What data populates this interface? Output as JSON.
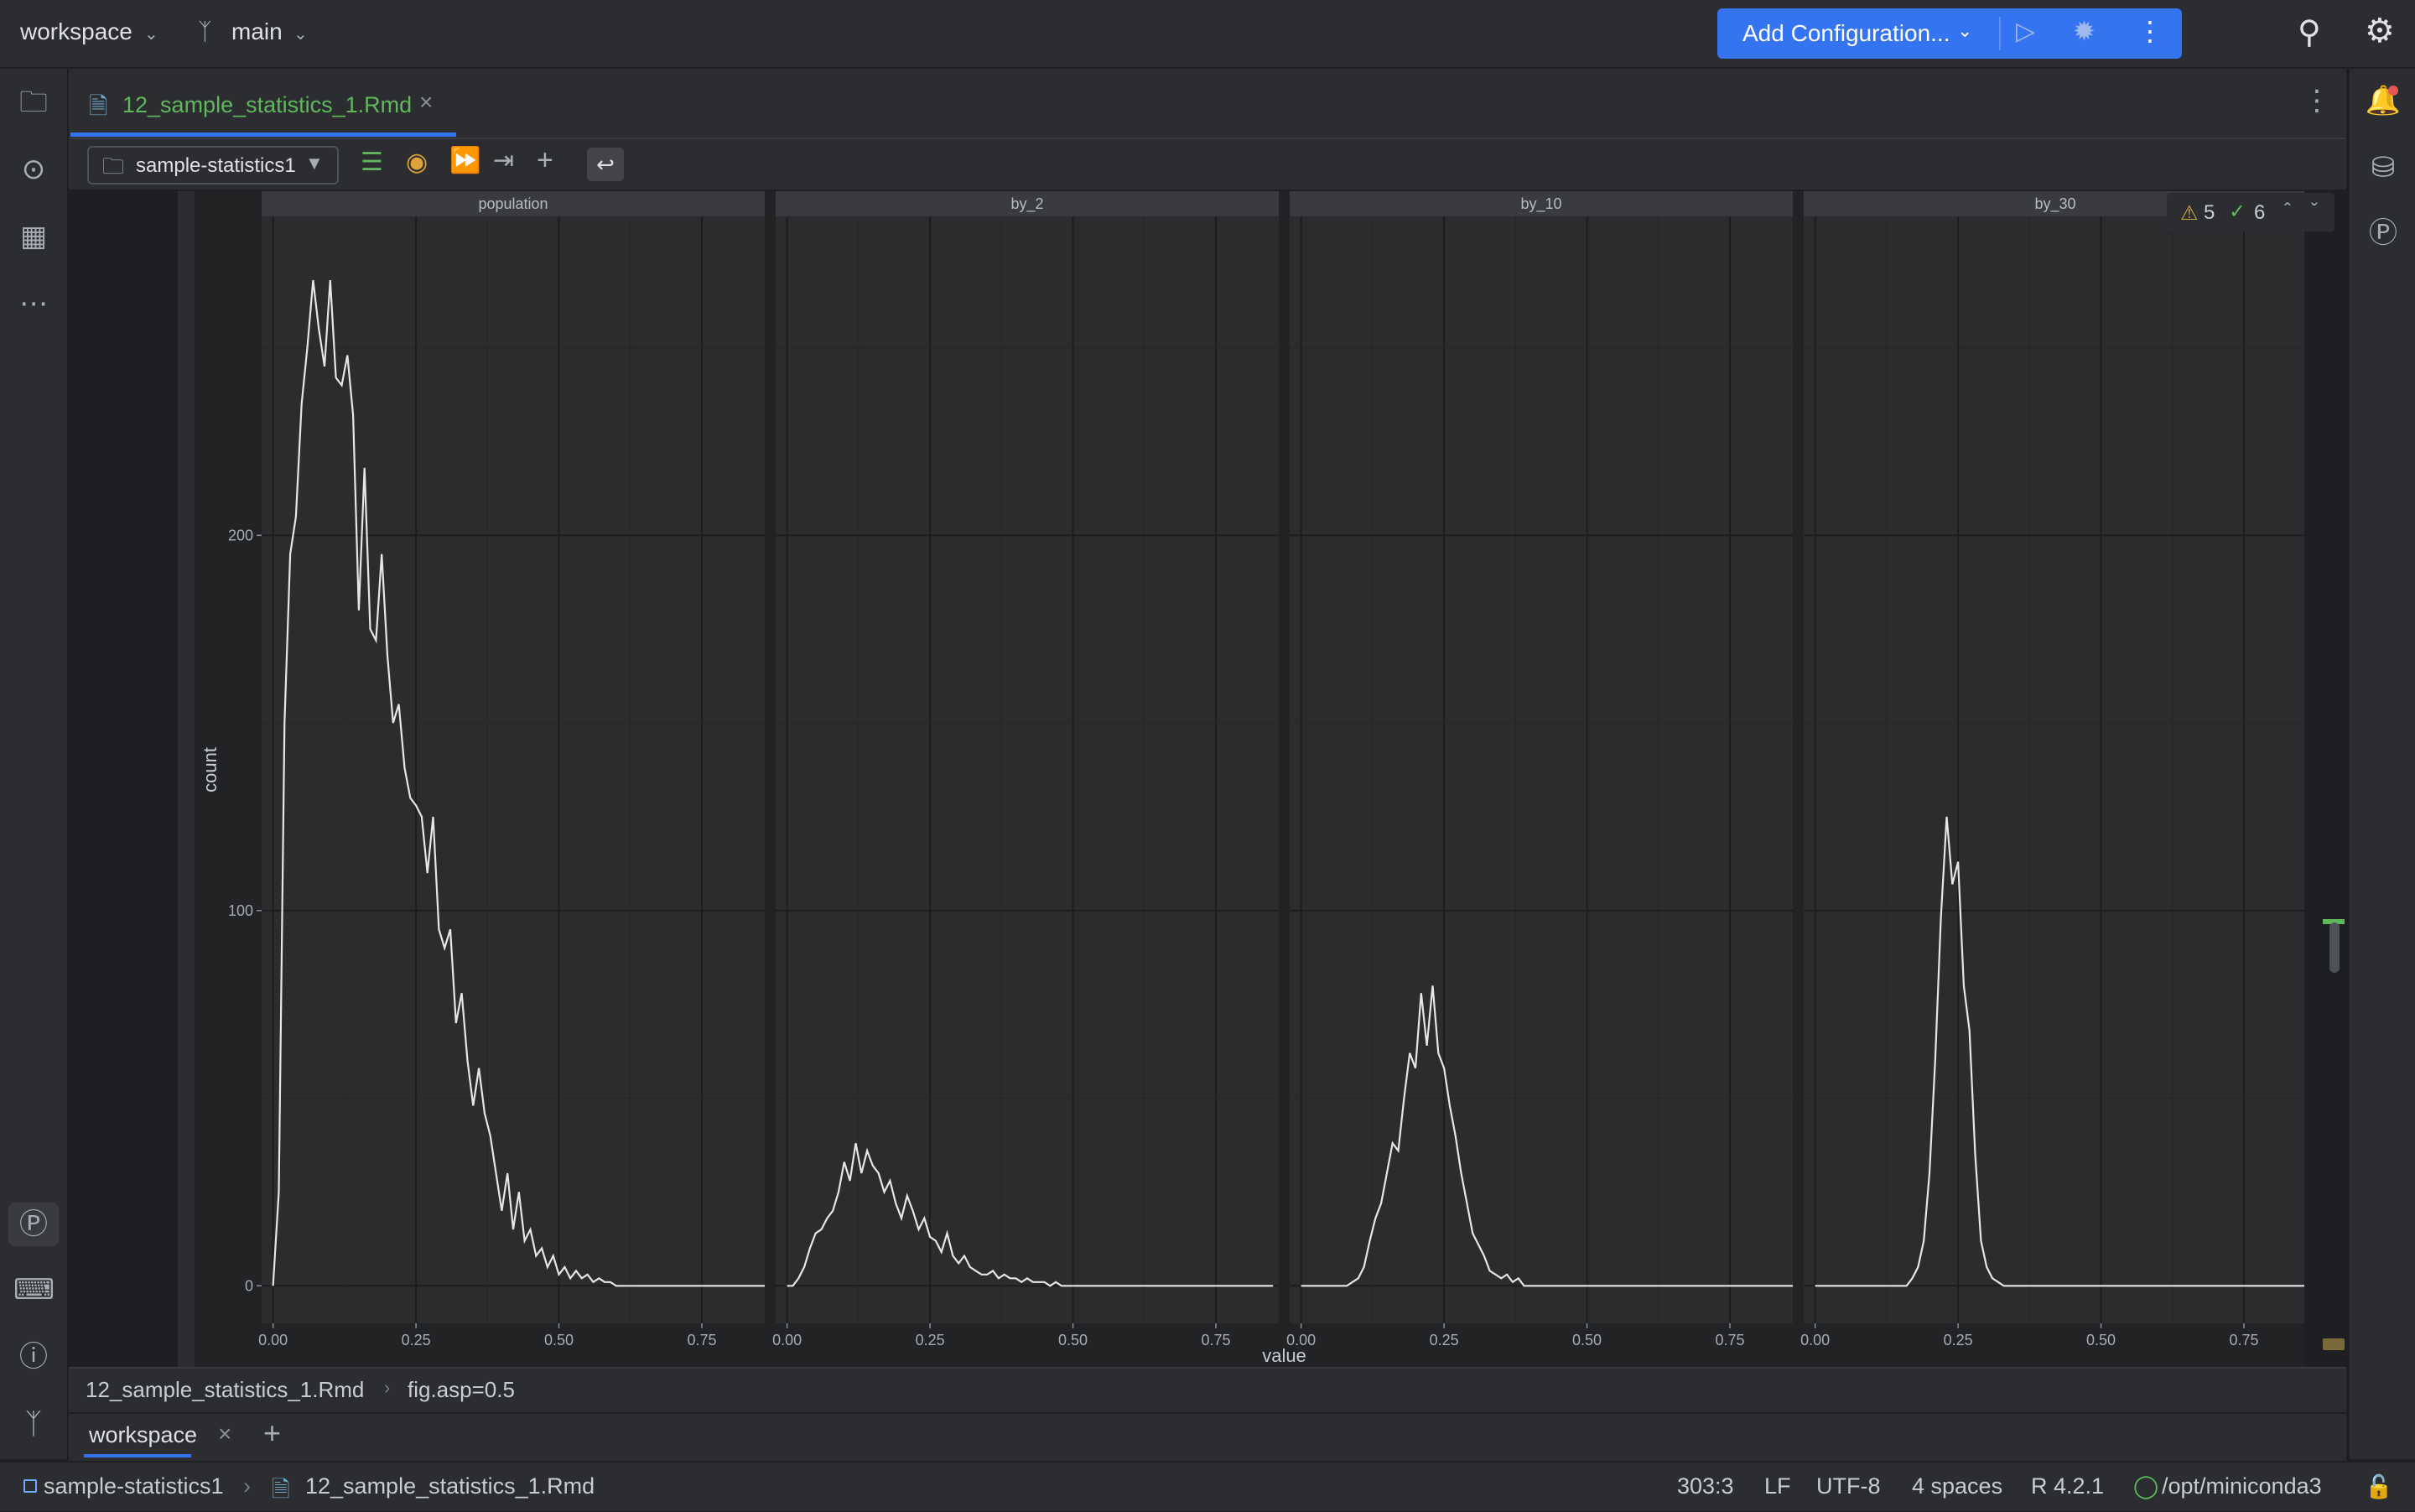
{
  "topbar": {
    "project": "workspace",
    "branch": "main",
    "run_config": "Add Configuration..."
  },
  "editor": {
    "tab_label": "12_sample_statistics_1.Rmd",
    "selector": "sample-statistics1"
  },
  "problems": {
    "warnings": "5",
    "ok": "6"
  },
  "breadcrumb": {
    "file": "12_sample_statistics_1.Rmd",
    "chunk": "fig.asp=0.5"
  },
  "bottom": {
    "tab": "workspace"
  },
  "status": {
    "module": "sample-statistics1",
    "file": "12_sample_statistics_1.Rmd",
    "position": "303:3",
    "line_sep": "LF",
    "encoding": "UTF-8",
    "indent": "4 spaces",
    "r_version": "R 4.2.1",
    "interpreter": "/opt/miniconda3"
  },
  "chart_data": {
    "type": "line",
    "xlabel": "value",
    "ylabel": "count",
    "xlim": [
      -0.02,
      0.86
    ],
    "ylim": [
      -10,
      285
    ],
    "x_ticks": [
      "0.00",
      "0.25",
      "0.50",
      "0.75"
    ],
    "x_tick_values": [
      0,
      0.25,
      0.5,
      0.75
    ],
    "y_ticks": [
      "0",
      "100",
      "200"
    ],
    "y_tick_values": [
      0,
      100,
      200
    ],
    "grid": true,
    "facets": [
      {
        "name": "population",
        "x": [
          0.0,
          0.01,
          0.02,
          0.03,
          0.04,
          0.05,
          0.06,
          0.07,
          0.08,
          0.09,
          0.1,
          0.11,
          0.12,
          0.13,
          0.14,
          0.15,
          0.16,
          0.17,
          0.18,
          0.19,
          0.2,
          0.21,
          0.22,
          0.23,
          0.24,
          0.25,
          0.26,
          0.27,
          0.28,
          0.29,
          0.3,
          0.31,
          0.32,
          0.33,
          0.34,
          0.35,
          0.36,
          0.37,
          0.38,
          0.39,
          0.4,
          0.41,
          0.42,
          0.43,
          0.44,
          0.45,
          0.46,
          0.47,
          0.48,
          0.49,
          0.5,
          0.51,
          0.52,
          0.53,
          0.54,
          0.55,
          0.56,
          0.57,
          0.58,
          0.59,
          0.6,
          0.61,
          0.62,
          0.63,
          0.64,
          0.65,
          0.66,
          0.67,
          0.68,
          0.69,
          0.7,
          0.71,
          0.72,
          0.73,
          0.74,
          0.75,
          0.76,
          0.77,
          0.78,
          0.79,
          0.8,
          0.81,
          0.82,
          0.83,
          0.84,
          0.85,
          0.86
        ],
        "y": [
          0,
          25,
          150,
          195,
          205,
          235,
          250,
          268,
          255,
          245,
          268,
          242,
          240,
          248,
          232,
          180,
          218,
          175,
          172,
          195,
          168,
          150,
          155,
          138,
          130,
          128,
          125,
          110,
          125,
          95,
          90,
          95,
          70,
          78,
          60,
          48,
          58,
          46,
          40,
          30,
          20,
          30,
          15,
          25,
          12,
          15,
          8,
          10,
          5,
          8,
          3,
          5,
          2,
          4,
          2,
          3,
          1,
          2,
          1,
          1,
          0,
          0,
          0,
          0,
          0,
          0,
          0,
          0,
          0,
          0,
          0,
          0,
          0,
          0,
          0,
          0,
          0,
          0,
          0,
          0,
          0,
          0,
          0,
          0,
          0,
          0,
          0
        ]
      },
      {
        "name": "by_2",
        "x": [
          0.0,
          0.01,
          0.02,
          0.03,
          0.04,
          0.05,
          0.06,
          0.07,
          0.08,
          0.09,
          0.1,
          0.11,
          0.12,
          0.13,
          0.14,
          0.15,
          0.16,
          0.17,
          0.18,
          0.19,
          0.2,
          0.21,
          0.22,
          0.23,
          0.24,
          0.25,
          0.26,
          0.27,
          0.28,
          0.29,
          0.3,
          0.31,
          0.32,
          0.33,
          0.34,
          0.35,
          0.36,
          0.37,
          0.38,
          0.39,
          0.4,
          0.41,
          0.42,
          0.43,
          0.44,
          0.45,
          0.46,
          0.47,
          0.48,
          0.49,
          0.5,
          0.51,
          0.52,
          0.53,
          0.54,
          0.55,
          0.56,
          0.57,
          0.58,
          0.59,
          0.6,
          0.61,
          0.62,
          0.63,
          0.64,
          0.65,
          0.66,
          0.67,
          0.68,
          0.69,
          0.7,
          0.71,
          0.72,
          0.73,
          0.74,
          0.75,
          0.8,
          0.85
        ],
        "y": [
          0,
          0,
          2,
          5,
          10,
          14,
          15,
          18,
          20,
          25,
          33,
          28,
          38,
          30,
          36,
          32,
          30,
          25,
          28,
          22,
          18,
          24,
          20,
          15,
          18,
          13,
          12,
          9,
          14,
          8,
          6,
          8,
          5,
          4,
          3,
          3,
          4,
          2,
          3,
          2,
          2,
          1,
          2,
          1,
          1,
          1,
          0,
          1,
          0,
          0,
          0,
          0,
          0,
          0,
          0,
          0,
          0,
          0,
          0,
          0,
          0,
          0,
          0,
          0,
          0,
          0,
          0,
          0,
          0,
          0,
          0,
          0,
          0,
          0,
          0,
          0,
          0,
          0
        ]
      },
      {
        "name": "by_10",
        "x": [
          0.0,
          0.02,
          0.04,
          0.06,
          0.08,
          0.1,
          0.11,
          0.12,
          0.13,
          0.14,
          0.15,
          0.16,
          0.17,
          0.18,
          0.19,
          0.2,
          0.21,
          0.22,
          0.23,
          0.24,
          0.25,
          0.26,
          0.27,
          0.28,
          0.29,
          0.3,
          0.31,
          0.32,
          0.33,
          0.34,
          0.35,
          0.36,
          0.37,
          0.38,
          0.39,
          0.4,
          0.42,
          0.45,
          0.5,
          0.6,
          0.7,
          0.8,
          0.86
        ],
        "y": [
          0,
          0,
          0,
          0,
          0,
          2,
          5,
          12,
          18,
          22,
          30,
          38,
          36,
          50,
          62,
          58,
          78,
          64,
          80,
          62,
          58,
          48,
          40,
          30,
          22,
          14,
          11,
          8,
          4,
          3,
          2,
          3,
          1,
          2,
          0,
          0,
          0,
          0,
          0,
          0,
          0,
          0,
          0
        ]
      },
      {
        "name": "by_30",
        "x": [
          0.0,
          0.05,
          0.1,
          0.13,
          0.14,
          0.15,
          0.16,
          0.17,
          0.18,
          0.19,
          0.2,
          0.21,
          0.22,
          0.23,
          0.24,
          0.25,
          0.26,
          0.27,
          0.28,
          0.29,
          0.3,
          0.31,
          0.32,
          0.33,
          0.35,
          0.4,
          0.5,
          0.6,
          0.7,
          0.8,
          0.86
        ],
        "y": [
          0,
          0,
          0,
          0,
          0,
          0,
          0,
          2,
          5,
          12,
          30,
          60,
          98,
          125,
          107,
          113,
          80,
          68,
          35,
          12,
          5,
          2,
          1,
          0,
          0,
          0,
          0,
          0,
          0,
          0,
          0
        ]
      }
    ]
  }
}
